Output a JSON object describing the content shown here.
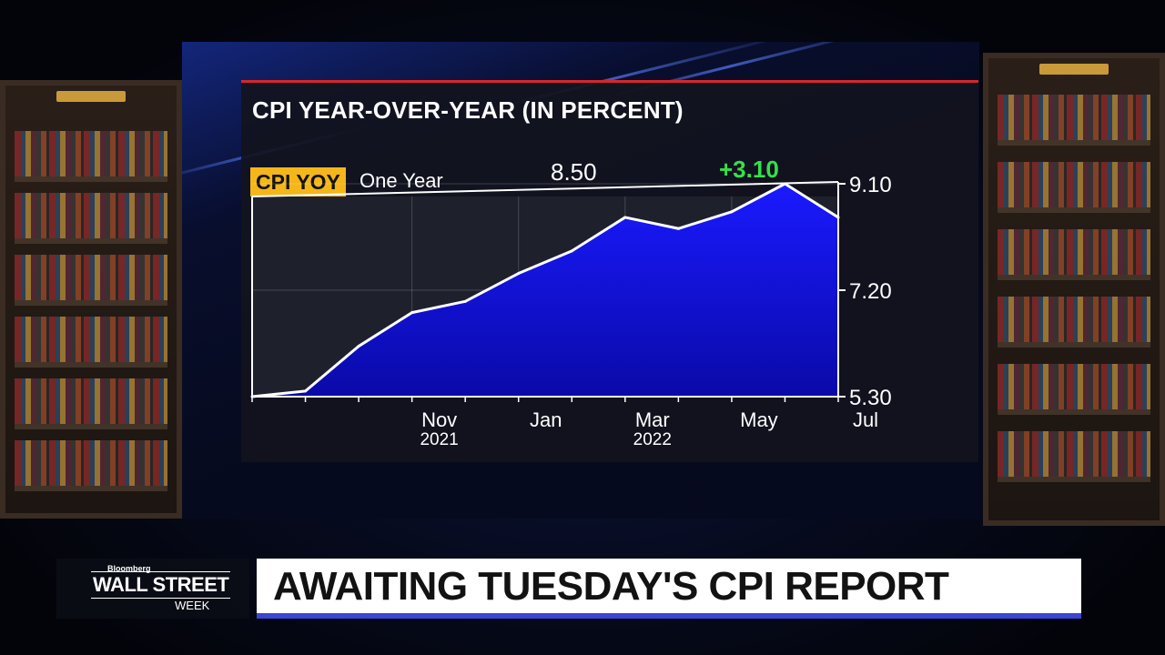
{
  "headline": "AWAITING TUESDAY'S CPI REPORT",
  "show_logo": {
    "brand": "Bloomberg",
    "show": "WALL STREET",
    "sub": "WEEK"
  },
  "panel": {
    "title": "CPI YEAR-OVER-YEAR (IN PERCENT)",
    "ticker_label": "CPI YOY",
    "period_label": "One Year",
    "value_label": "8.50",
    "change_label": "+3.10",
    "colors": {
      "accent": "#d8262b",
      "badge": "#f4b619",
      "change": "#35e04a",
      "fill": "#1010e0",
      "line": "#ffffff"
    }
  },
  "chart_data": {
    "type": "area",
    "title": "CPI YEAR-OVER-YEAR (IN PERCENT)",
    "x": [
      "2021-08",
      "2021-09",
      "2021-10",
      "2021-11",
      "2021-12",
      "2022-01",
      "2022-02",
      "2022-03",
      "2022-04",
      "2022-05",
      "2022-06",
      "2022-07"
    ],
    "series": [
      {
        "name": "CPI YOY",
        "values": [
          5.3,
          5.4,
          6.2,
          6.8,
          7.0,
          7.5,
          7.9,
          8.5,
          8.3,
          8.6,
          9.1,
          8.5
        ]
      }
    ],
    "x_tick_labels": [
      {
        "label": "Nov",
        "sub": "2021",
        "x": "2021-11"
      },
      {
        "label": "Jan",
        "sub": "",
        "x": "2022-01"
      },
      {
        "label": "Mar",
        "sub": "2022",
        "x": "2022-03"
      },
      {
        "label": "May",
        "sub": "",
        "x": "2022-05"
      },
      {
        "label": "Jul",
        "sub": "",
        "x": "2022-07"
      }
    ],
    "y_ticks": [
      "5.30",
      "7.20",
      "9.10"
    ],
    "ylim": [
      5.3,
      9.1
    ],
    "grid": true,
    "axis_position": "right"
  }
}
